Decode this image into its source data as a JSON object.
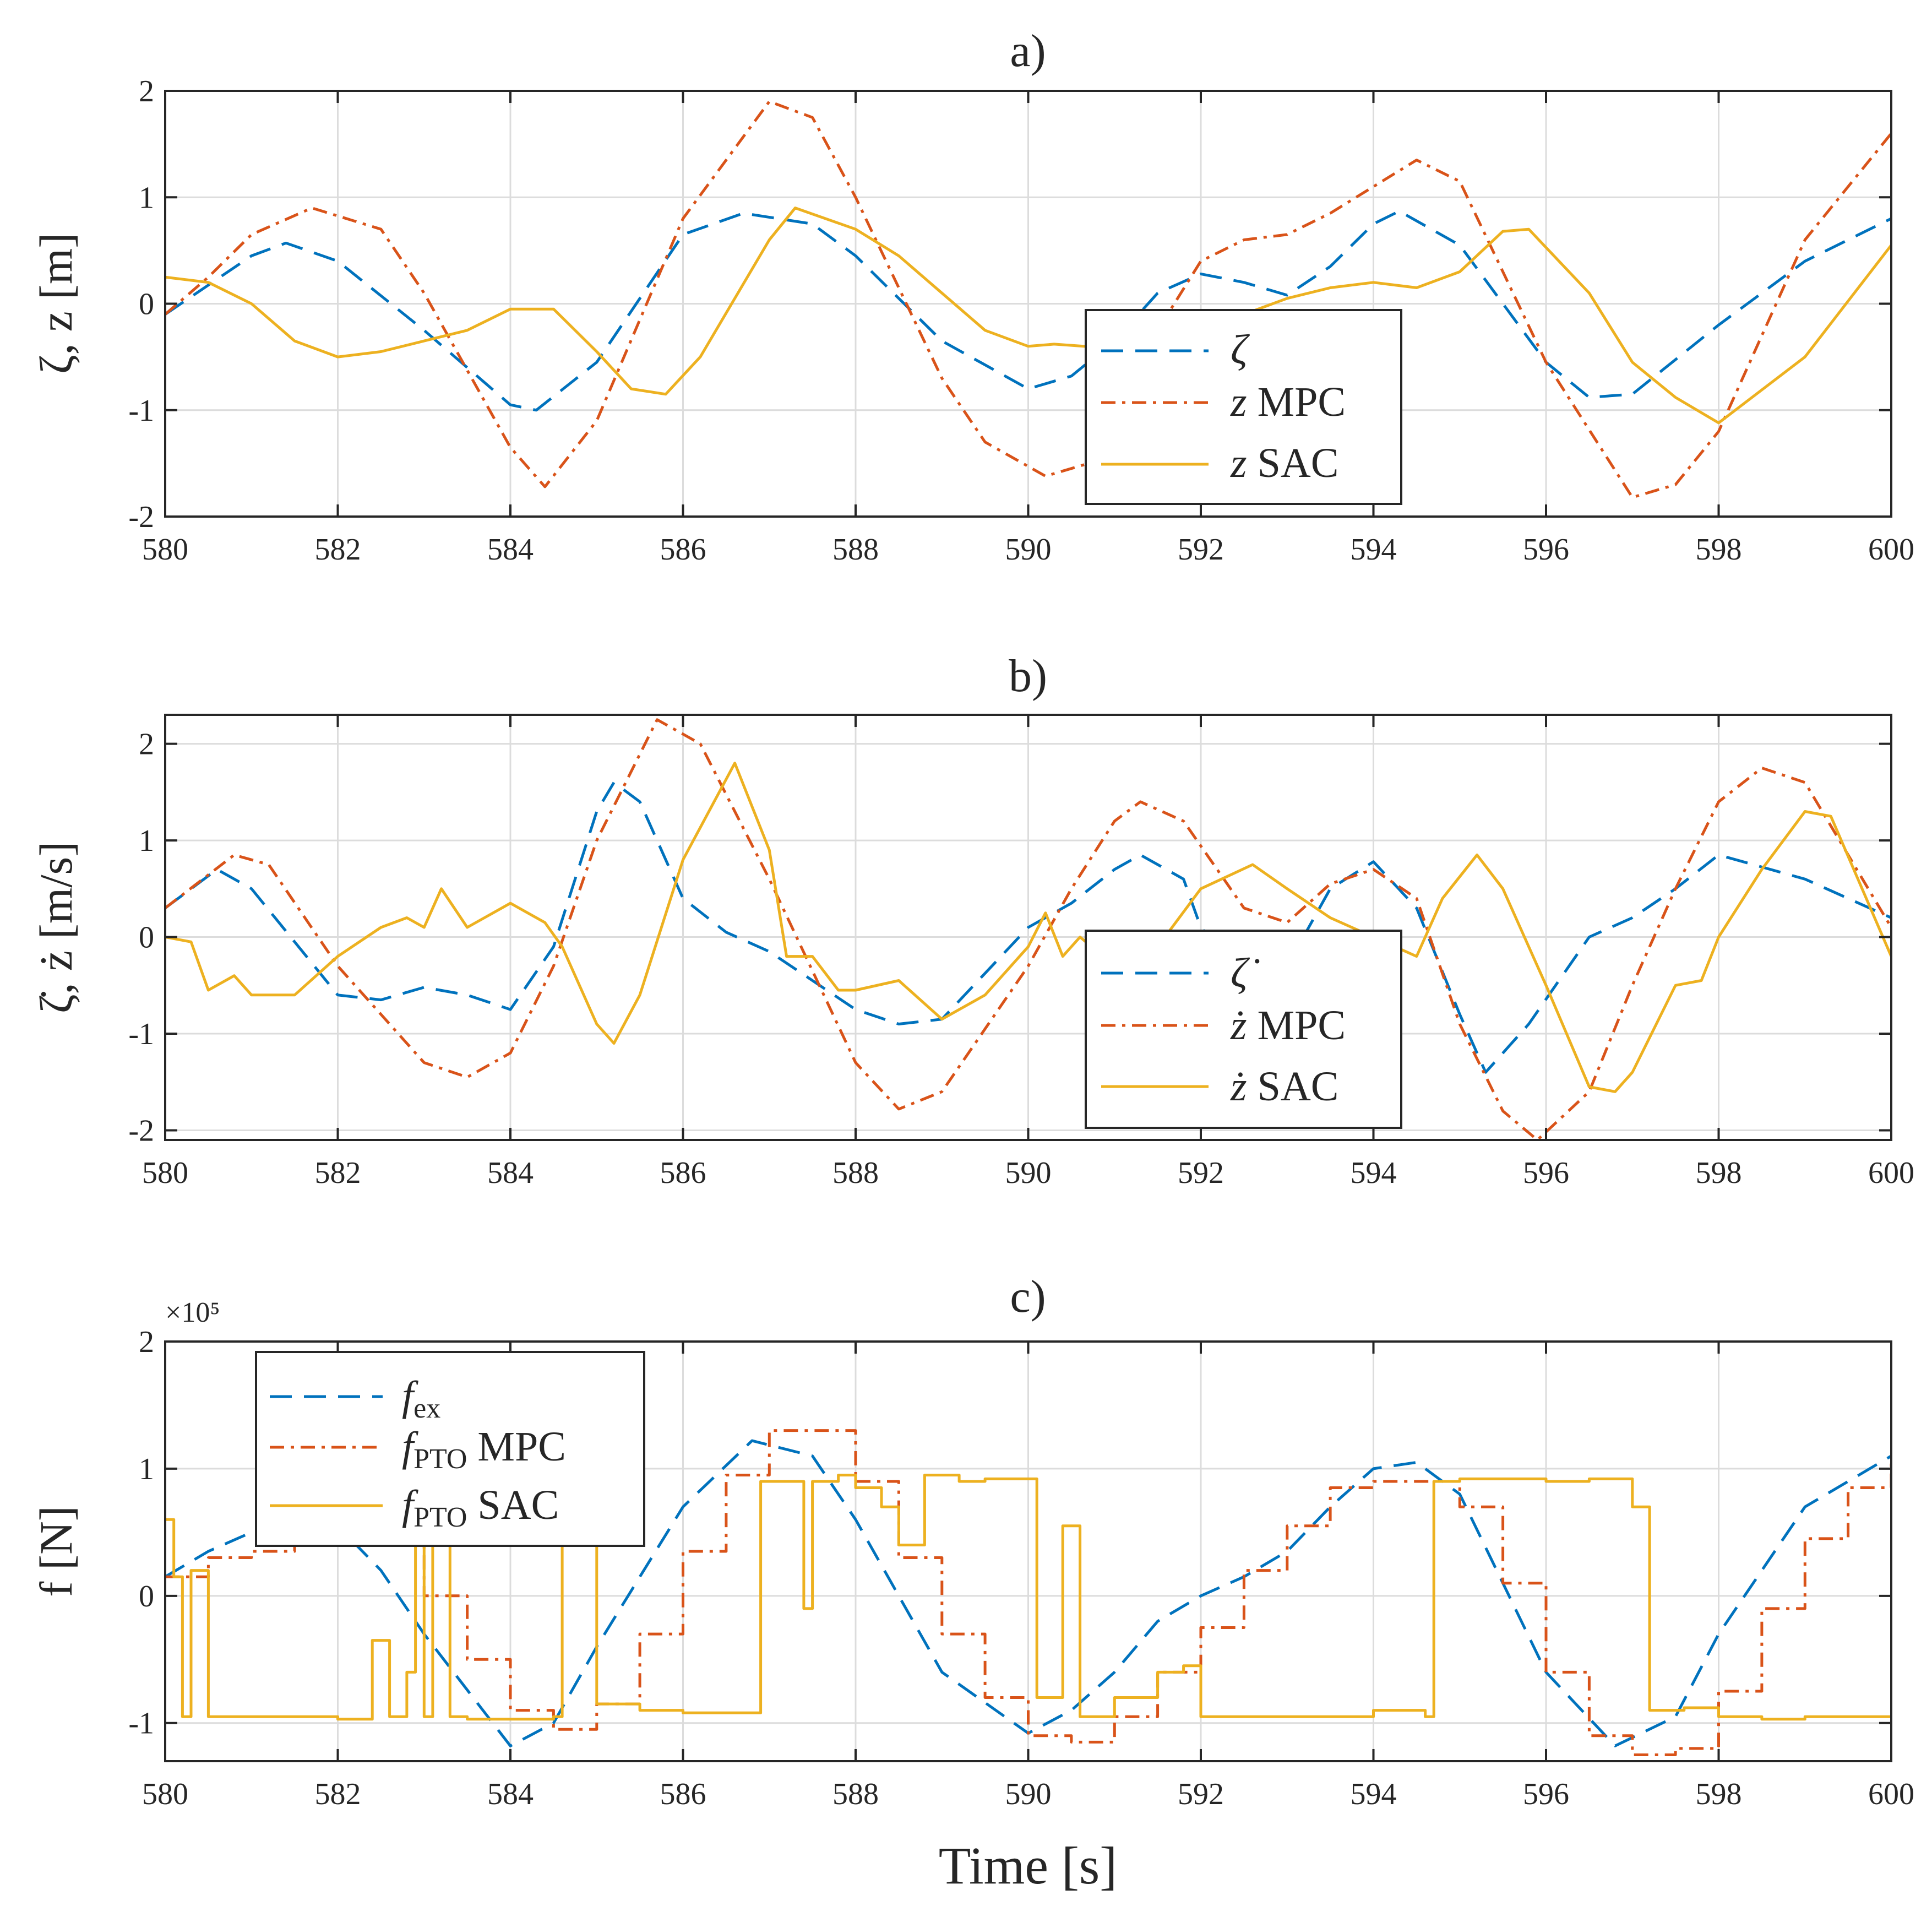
{
  "colors": {
    "zeta": "#0072BD",
    "mpc": "#D95319",
    "sac": "#EDB120",
    "axis": "#262626",
    "grid": "#dcdcdc"
  },
  "xlabel": "Time [s]",
  "chart_data": [
    {
      "type": "line",
      "title": "a)",
      "ylabel": "ζ, z [m]",
      "xlim": [
        580,
        600
      ],
      "ylim": [
        -2,
        2
      ],
      "xticks": [
        "580",
        "582",
        "584",
        "586",
        "588",
        "590",
        "592",
        "594",
        "596",
        "598",
        "600"
      ],
      "yticks": [
        "2",
        "1",
        "0",
        "-1",
        "-2"
      ],
      "grid": true,
      "legend": "center-right",
      "series": [
        {
          "name": "ζ",
          "style": "dashed",
          "color": "#0072BD",
          "x": [
            580,
            581,
            581.4,
            582,
            583,
            584,
            584.3,
            585,
            586,
            586.7,
            587.5,
            588,
            589,
            590,
            590.5,
            591,
            591.5,
            592,
            592.5,
            593,
            593.5,
            594,
            594.3,
            595,
            596,
            596.5,
            597,
            598,
            599,
            600
          ],
          "y": [
            -0.1,
            0.45,
            0.57,
            0.4,
            -0.25,
            -0.95,
            -1.0,
            -0.55,
            0.65,
            0.85,
            0.75,
            0.45,
            -0.35,
            -0.8,
            -0.68,
            -0.35,
            0.1,
            0.28,
            0.2,
            0.08,
            0.35,
            0.75,
            0.87,
            0.55,
            -0.55,
            -0.88,
            -0.85,
            -0.2,
            0.4,
            0.8
          ]
        },
        {
          "name": "MPC",
          "style": "dashdot",
          "color": "#D95319",
          "x": [
            580,
            580.5,
            581,
            581.7,
            582.5,
            583,
            584,
            584.4,
            585,
            586,
            587,
            587.5,
            588,
            589,
            589.5,
            590.2,
            590.7,
            591,
            591.5,
            592,
            592.5,
            593,
            593.5,
            594,
            594.5,
            595,
            596,
            597,
            597.5,
            598,
            599,
            600
          ],
          "y": [
            -0.1,
            0.25,
            0.65,
            0.9,
            0.7,
            0.1,
            -1.35,
            -1.72,
            -1.1,
            0.8,
            1.9,
            1.75,
            1.0,
            -0.7,
            -1.3,
            -1.62,
            -1.5,
            -1.2,
            -0.25,
            0.4,
            0.6,
            0.65,
            0.85,
            1.1,
            1.35,
            1.15,
            -0.55,
            -1.82,
            -1.7,
            -1.2,
            0.6,
            1.6
          ]
        },
        {
          "name": "SAC",
          "style": "solid",
          "color": "#EDB120",
          "x": [
            580,
            580.5,
            581,
            581.5,
            582,
            582.5,
            583,
            583.5,
            584,
            584.5,
            585,
            585.4,
            585.8,
            586.2,
            587,
            587.3,
            588,
            588.5,
            589,
            589.5,
            590,
            590.3,
            591,
            592,
            592.5,
            593,
            593.5,
            594,
            594.5,
            595,
            595.5,
            595.8,
            596.5,
            597,
            597.5,
            598,
            599,
            600
          ],
          "y": [
            0.25,
            0.2,
            0.0,
            -0.35,
            -0.5,
            -0.45,
            -0.35,
            -0.25,
            -0.05,
            -0.05,
            -0.45,
            -0.8,
            -0.85,
            -0.5,
            0.6,
            0.9,
            0.7,
            0.45,
            0.1,
            -0.25,
            -0.4,
            -0.38,
            -0.42,
            -0.3,
            -0.1,
            0.05,
            0.15,
            0.2,
            0.15,
            0.3,
            0.68,
            0.7,
            0.1,
            -0.55,
            -0.88,
            -1.12,
            -0.5,
            0.55
          ]
        }
      ]
    },
    {
      "type": "line",
      "title": "b)",
      "ylabel": "ζ̇, ż [m/s]",
      "xlim": [
        580,
        600
      ],
      "ylim": [
        -2.1,
        2.3
      ],
      "xticks": [
        "580",
        "582",
        "584",
        "586",
        "588",
        "590",
        "592",
        "594",
        "596",
        "598",
        "600"
      ],
      "yticks": [
        "2",
        "1",
        "0",
        "-1",
        "-2"
      ],
      "grid": true,
      "legend": "center-right",
      "series": [
        {
          "name": "ζ̇",
          "style": "dashed",
          "color": "#0072BD",
          "x": [
            580,
            580.6,
            581,
            582,
            582.5,
            583,
            583.5,
            584,
            584.5,
            585,
            585.2,
            585.5,
            586,
            586.5,
            587,
            588,
            588.5,
            589,
            590,
            590.5,
            591,
            591.3,
            591.8,
            592,
            592.5,
            593,
            593.5,
            594,
            594.5,
            595,
            595.3,
            595.8,
            596.5,
            597,
            597.5,
            598,
            599,
            600
          ],
          "y": [
            0.3,
            0.7,
            0.5,
            -0.6,
            -0.65,
            -0.52,
            -0.6,
            -0.75,
            -0.1,
            1.3,
            1.6,
            1.4,
            0.4,
            0.05,
            -0.15,
            -0.75,
            -0.9,
            -0.85,
            0.1,
            0.35,
            0.7,
            0.85,
            0.6,
            0.1,
            -0.4,
            -0.3,
            0.5,
            0.78,
            0.3,
            -0.8,
            -1.4,
            -0.9,
            0.0,
            0.2,
            0.5,
            0.85,
            0.6,
            0.2
          ]
        },
        {
          "name": "MPC",
          "style": "dashdot",
          "color": "#D95319",
          "x": [
            580,
            580.8,
            581.2,
            582,
            583,
            583.5,
            584,
            584.5,
            585,
            585.7,
            586.2,
            587,
            588,
            588.5,
            589,
            590,
            590.5,
            591,
            591.3,
            591.8,
            592.5,
            593,
            593.5,
            594,
            594.5,
            595,
            595.5,
            595.9,
            596.5,
            597,
            597.5,
            598,
            598.5,
            599,
            600
          ],
          "y": [
            0.3,
            0.85,
            0.75,
            -0.3,
            -1.3,
            -1.45,
            -1.2,
            -0.3,
            1.0,
            2.25,
            2.0,
            0.6,
            -1.3,
            -1.78,
            -1.6,
            -0.3,
            0.5,
            1.2,
            1.4,
            1.2,
            0.3,
            0.15,
            0.55,
            0.7,
            0.4,
            -0.9,
            -1.8,
            -2.1,
            -1.6,
            -0.5,
            0.5,
            1.4,
            1.75,
            1.6,
            0.1
          ]
        },
        {
          "name": "SAC",
          "style": "solid",
          "color": "#EDB120",
          "x": [
            580,
            580.3,
            580.5,
            580.8,
            581,
            581.5,
            582,
            582.5,
            582.8,
            583,
            583.2,
            583.5,
            584,
            584.4,
            584.6,
            585,
            585.2,
            585.5,
            586,
            586.6,
            587,
            587.2,
            587.5,
            587.8,
            588,
            588.5,
            589,
            589.5,
            590,
            590.2,
            590.4,
            590.6,
            591,
            591.5,
            592,
            592.6,
            593,
            593.5,
            594,
            594.5,
            594.8,
            595.2,
            595.5,
            596,
            596.5,
            596.8,
            597,
            597.5,
            597.8,
            598,
            598.5,
            599,
            599.3,
            600
          ],
          "y": [
            0.0,
            -0.05,
            -0.55,
            -0.4,
            -0.6,
            -0.6,
            -0.2,
            0.1,
            0.2,
            0.1,
            0.5,
            0.1,
            0.35,
            0.15,
            -0.1,
            -0.9,
            -1.1,
            -0.6,
            0.8,
            1.8,
            0.9,
            -0.2,
            -0.2,
            -0.55,
            -0.55,
            -0.45,
            -0.85,
            -0.6,
            -0.1,
            0.25,
            -0.2,
            0.0,
            -0.3,
            -0.1,
            0.5,
            0.75,
            0.5,
            0.2,
            0.0,
            -0.2,
            0.4,
            0.85,
            0.5,
            -0.5,
            -1.55,
            -1.6,
            -1.4,
            -0.5,
            -0.45,
            0.0,
            0.7,
            1.3,
            1.25,
            -0.2
          ]
        }
      ]
    },
    {
      "type": "line",
      "title": "c)",
      "ylabel": "f [N]",
      "multiplier": "×10⁵",
      "xlim": [
        580,
        600
      ],
      "ylim": [
        -1.3,
        2
      ],
      "xticks": [
        "580",
        "582",
        "584",
        "586",
        "588",
        "590",
        "592",
        "594",
        "596",
        "598",
        "600"
      ],
      "yticks": [
        "2",
        "1",
        "0",
        "-1"
      ],
      "grid": true,
      "legend": "top-left",
      "series": [
        {
          "name": "ex",
          "style": "dashed",
          "color": "#0072BD",
          "x": [
            580,
            580.5,
            581,
            582,
            582.5,
            583,
            584,
            584.5,
            585,
            586,
            586.8,
            587.5,
            588,
            589,
            590,
            590.5,
            591,
            591.5,
            592,
            592.5,
            593,
            593.5,
            594,
            594.5,
            595,
            596,
            596.8,
            597.5,
            598,
            599,
            600
          ],
          "y": [
            0.15,
            0.35,
            0.5,
            0.55,
            0.2,
            -0.3,
            -1.18,
            -1.0,
            -0.4,
            0.7,
            1.22,
            1.1,
            0.6,
            -0.6,
            -1.08,
            -0.9,
            -0.6,
            -0.2,
            0.0,
            0.15,
            0.35,
            0.7,
            1.0,
            1.05,
            0.8,
            -0.6,
            -1.18,
            -0.95,
            -0.3,
            0.7,
            1.1
          ]
        },
        {
          "name": "PTO MPC",
          "style": "dashdot",
          "color": "#D95319",
          "step": true,
          "x": [
            580,
            580.5,
            581,
            581.5,
            582,
            582.5,
            583,
            583.5,
            584,
            584.5,
            585,
            585.5,
            586,
            586.5,
            587,
            587.5,
            588,
            588.5,
            589,
            589.5,
            590,
            590.5,
            591,
            591.5,
            592,
            592.5,
            593,
            593.5,
            594,
            594.5,
            595,
            595.5,
            596,
            596.5,
            597,
            597.5,
            598,
            598.5,
            599,
            599.5,
            600
          ],
          "y": [
            0.15,
            0.3,
            0.35,
            0.45,
            0.55,
            0.45,
            0.0,
            -0.5,
            -0.9,
            -1.05,
            -0.85,
            -0.3,
            0.35,
            0.95,
            1.3,
            1.3,
            0.9,
            0.3,
            -0.3,
            -0.8,
            -1.1,
            -1.15,
            -0.95,
            -0.6,
            -0.25,
            0.2,
            0.55,
            0.85,
            0.9,
            0.9,
            0.7,
            0.1,
            -0.6,
            -1.1,
            -1.25,
            -1.2,
            -0.75,
            -0.1,
            0.45,
            0.85,
            1.05
          ]
        },
        {
          "name": "PTO SAC",
          "style": "solid",
          "color": "#EDB120",
          "step": true,
          "x": [
            580,
            580.1,
            580.2,
            580.3,
            580.5,
            581,
            582,
            582.4,
            582.6,
            582.8,
            582.9,
            583,
            583.1,
            583.3,
            583.5,
            584,
            584.5,
            584.6,
            585,
            585.5,
            586,
            586.5,
            586.9,
            587.1,
            587.4,
            587.5,
            587.8,
            588,
            588.3,
            588.5,
            588.8,
            589.2,
            589.5,
            590,
            590.1,
            590.4,
            590.6,
            591,
            591.5,
            591.8,
            592,
            593,
            594,
            594.6,
            594.7,
            595,
            595.5,
            596,
            596.5,
            597,
            597.2,
            597.6,
            598,
            598.5,
            599,
            600
          ],
          "y": [
            0.6,
            0.15,
            -0.95,
            0.2,
            -0.95,
            -0.95,
            -0.97,
            -0.35,
            -0.95,
            -0.6,
            0.4,
            -0.95,
            0.4,
            -0.95,
            -0.97,
            -0.97,
            -0.95,
            0.6,
            -0.85,
            -0.9,
            -0.92,
            -0.92,
            0.9,
            0.9,
            -0.1,
            0.9,
            0.95,
            0.85,
            0.7,
            0.4,
            0.95,
            0.9,
            0.92,
            0.92,
            -0.8,
            0.55,
            -0.95,
            -0.8,
            -0.6,
            -0.55,
            -0.95,
            -0.95,
            -0.9,
            -0.95,
            0.9,
            0.92,
            0.92,
            0.9,
            0.92,
            0.7,
            -0.9,
            -0.88,
            -0.95,
            -0.97,
            -0.95,
            -0.95
          ]
        }
      ]
    }
  ]
}
